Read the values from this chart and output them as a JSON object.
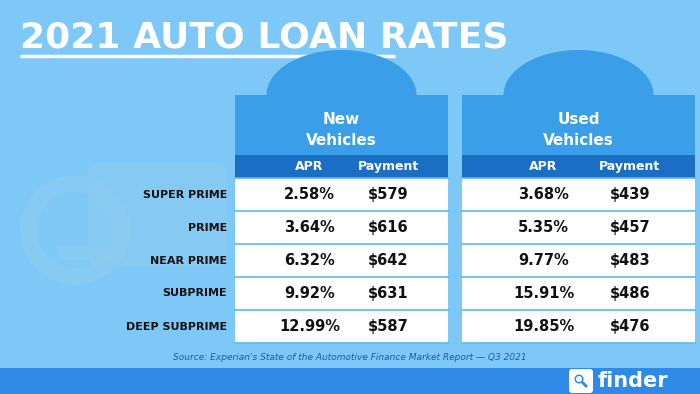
{
  "title": "2021 AUTO LOAN RATES",
  "background_color": "#7EC8F7",
  "table_bg_light": "#FFFFFF",
  "table_bg_dark": "#1A6FC4",
  "table_bg_medium": "#3A9EE8",
  "row_separator_color": "#5BB8F5",
  "title_color": "#FFFFFF",
  "header_text_color": "#FFFFFF",
  "row_label_color": "#111111",
  "data_color": "#111111",
  "source_text": "Source: Experian's State of the Automotive Finance Market Report — Q3 2021",
  "new_vehicle_header": "New\nVehicles",
  "used_vehicle_header": "Used\nVehicles",
  "row_labels": [
    "SUPER PRIME",
    "PRIME",
    "NEAR PRIME",
    "SUBPRIME",
    "DEEP SUBPRIME"
  ],
  "new_apr": [
    "2.58%",
    "3.64%",
    "6.32%",
    "9.92%",
    "12.99%"
  ],
  "new_payment": [
    "$579",
    "$616",
    "$642",
    "$631",
    "$587"
  ],
  "used_apr": [
    "3.68%",
    "5.35%",
    "9.77%",
    "15.91%",
    "19.85%"
  ],
  "used_payment": [
    "$439",
    "$457",
    "$483",
    "$486",
    "$476"
  ],
  "bottom_bar_color": "#2E8AE6",
  "finder_color": "#FFFFFF",
  "watermark_color": "#90CDEF"
}
